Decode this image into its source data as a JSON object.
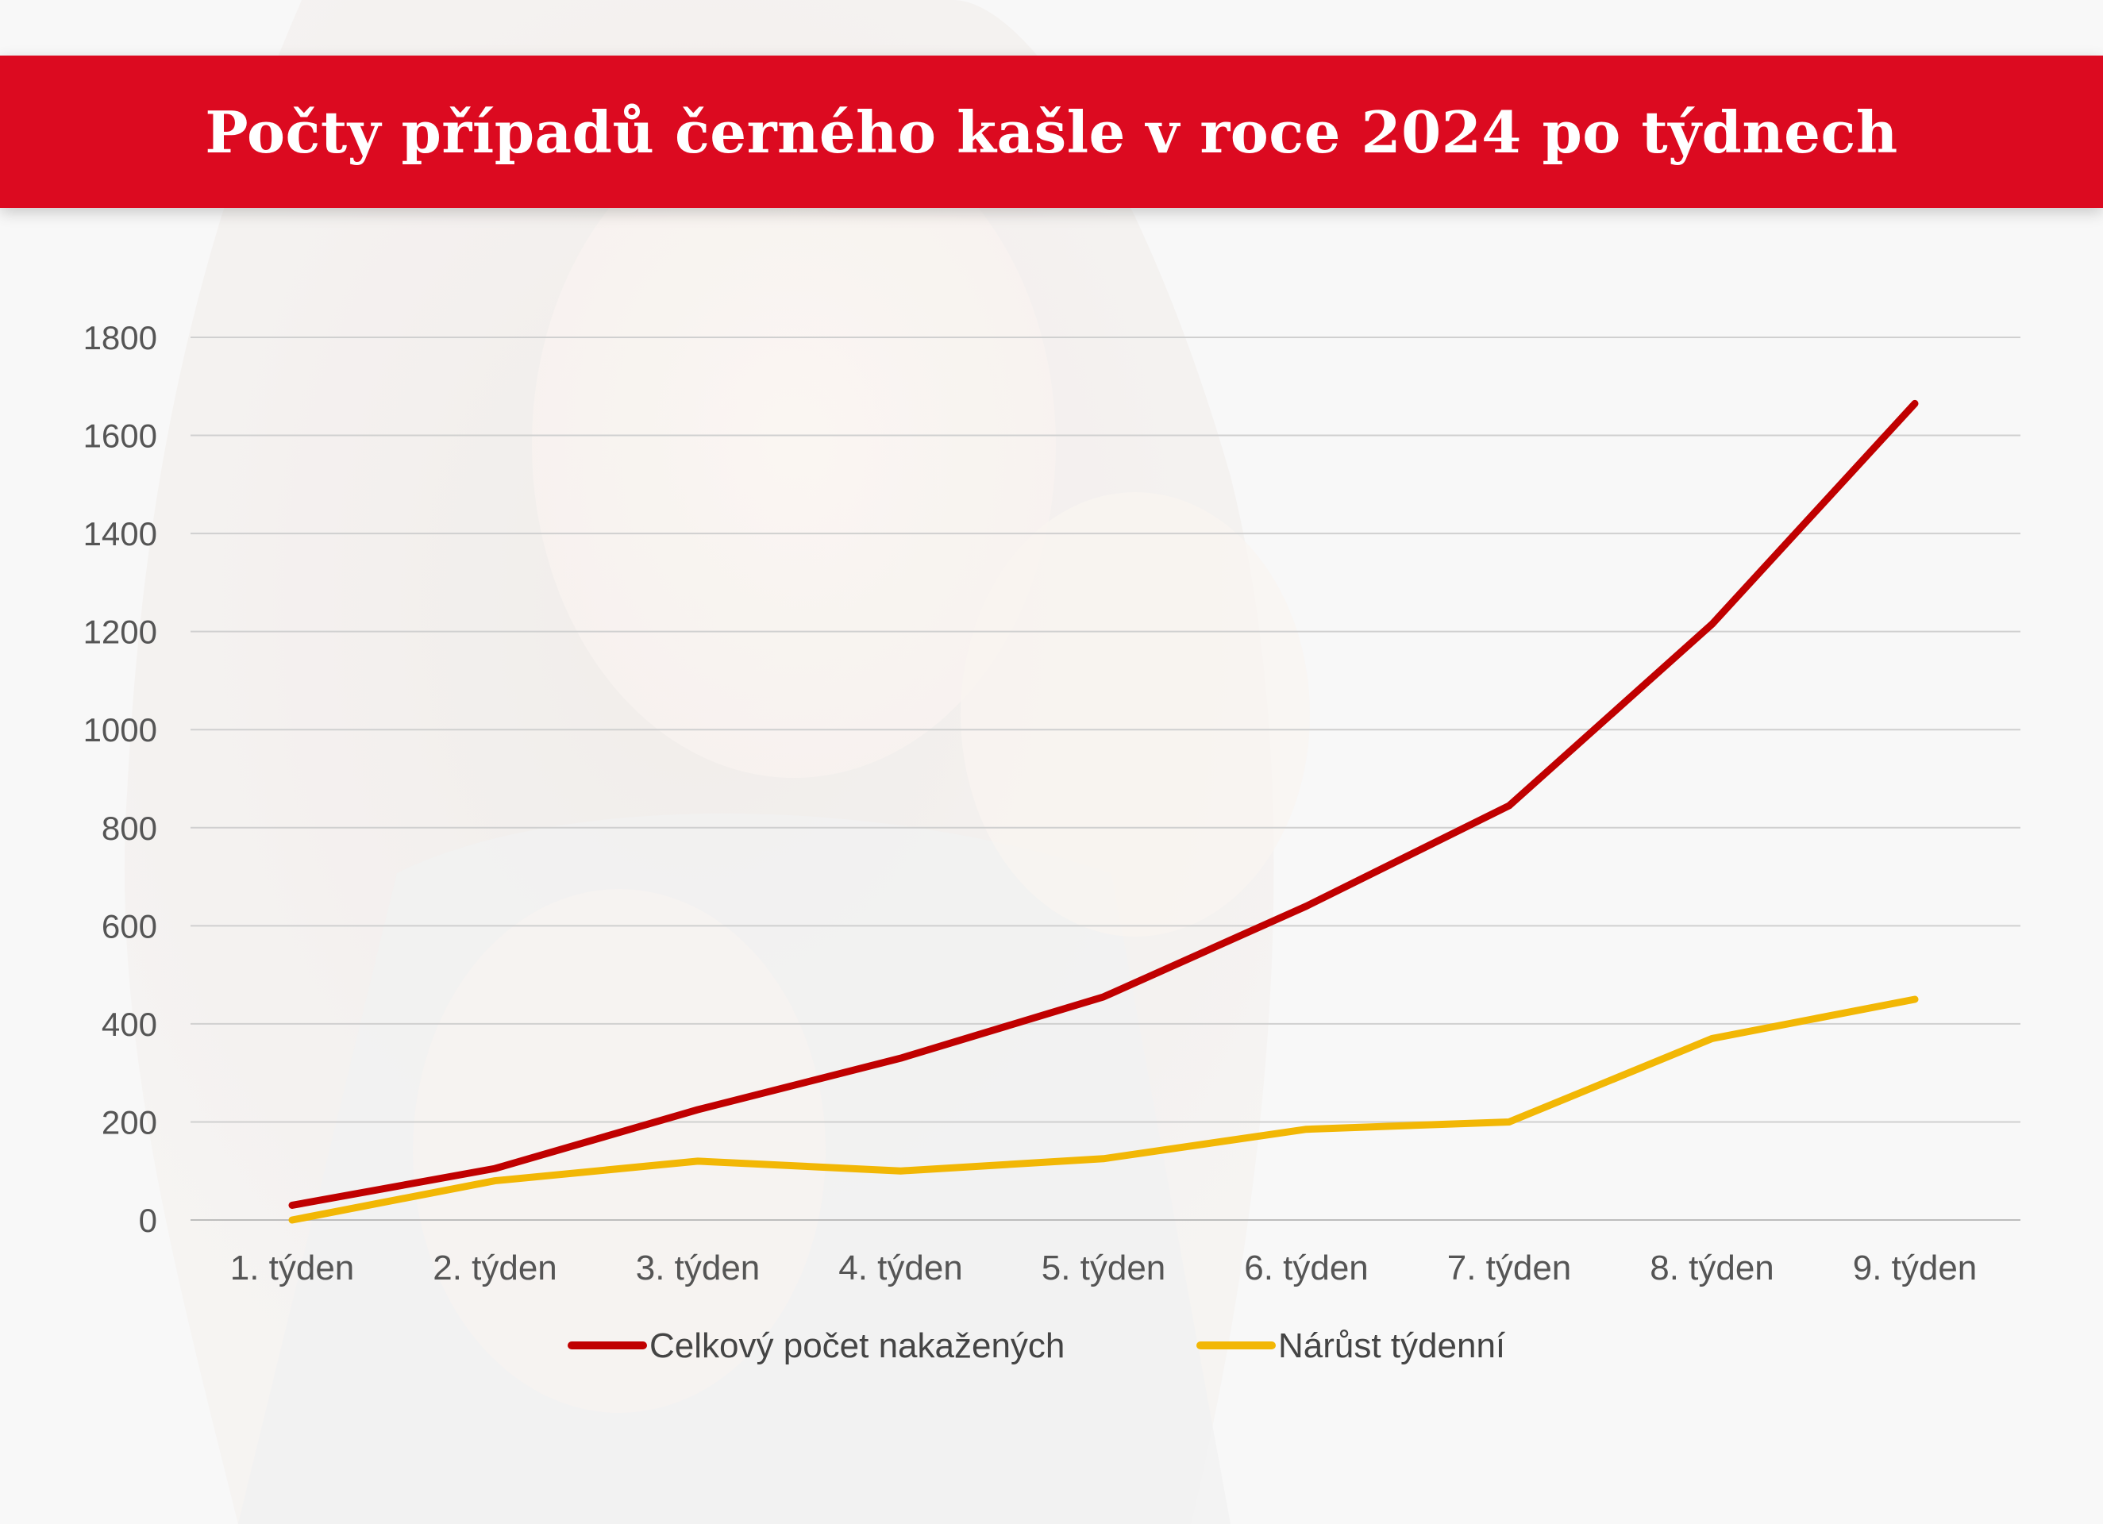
{
  "header": {
    "title": "Počty případů černého kašle v roce 2024 po týdnech"
  },
  "colors": {
    "banner": "#dc0a20",
    "series_total": "#c00000",
    "series_weekly": "#f2b705",
    "grid": "#d0d0d0"
  },
  "chart_data": {
    "type": "line",
    "title": "Počty případů černého kašle v roce 2024 po týdnech",
    "categories": [
      "1. týden",
      "2. týden",
      "3. týden",
      "4. týden",
      "5. týden",
      "6. týden",
      "7. týden",
      "8. týden",
      "9. týden"
    ],
    "series": [
      {
        "name": "Celkový počet nakažených",
        "color": "#c00000",
        "values": [
          30,
          105,
          225,
          330,
          455,
          640,
          845,
          1215,
          1665
        ]
      },
      {
        "name": "Nárůst týdenní",
        "color": "#f2b705",
        "values": [
          0,
          80,
          120,
          100,
          125,
          185,
          200,
          370,
          450
        ]
      }
    ],
    "ylim": [
      0,
      1800
    ],
    "yticks": [
      0,
      200,
      400,
      600,
      800,
      1000,
      1200,
      1400,
      1600,
      1800
    ],
    "xlabel": "",
    "ylabel": "",
    "grid": true,
    "legend": "bottom"
  }
}
